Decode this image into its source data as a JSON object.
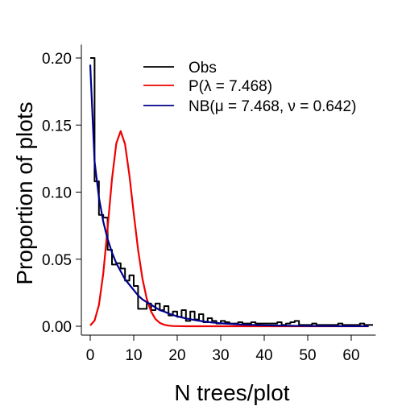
{
  "chart_data": {
    "type": "line",
    "xlabel": "N trees/plot",
    "ylabel": "Proportion of plots",
    "xlim": [
      -2,
      66
    ],
    "ylim": [
      -0.008,
      0.21
    ],
    "xticks": [
      0,
      10,
      20,
      30,
      40,
      50,
      60
    ],
    "yticks": [
      0.0,
      0.05,
      0.1,
      0.15,
      0.2
    ],
    "xtick_labels": [
      "0",
      "10",
      "20",
      "30",
      "40",
      "50",
      "60"
    ],
    "ytick_labels": [
      "0.00",
      "0.05",
      "0.10",
      "0.15",
      "0.20"
    ],
    "grid": false,
    "legend_position": "top-right",
    "legend": [
      {
        "label": "Obs",
        "color": "#000000"
      },
      {
        "label": "P(λ = 7.468)",
        "color": "#ee0000"
      },
      {
        "label": "NB(μ = 7.468, ν = 0.642)",
        "color": "#00008b"
      }
    ],
    "series": [
      {
        "name": "Obs",
        "color": "#000000",
        "style": "step",
        "x": [
          0,
          1,
          2,
          3,
          4,
          5,
          6,
          7,
          8,
          9,
          10,
          11,
          12,
          13,
          14,
          15,
          16,
          17,
          18,
          19,
          20,
          21,
          22,
          23,
          24,
          25,
          26,
          27,
          28,
          29,
          30,
          31,
          32,
          33,
          34,
          35,
          36,
          37,
          38,
          39,
          40,
          41,
          42,
          43,
          44,
          45,
          46,
          47,
          48,
          49,
          50,
          51,
          52,
          53,
          54,
          55,
          56,
          57,
          58,
          59,
          60,
          61,
          62,
          63,
          64
        ],
        "y": [
          0.2,
          0.108,
          0.083,
          0.081,
          0.057,
          0.046,
          0.047,
          0.043,
          0.034,
          0.038,
          0.03,
          0.013,
          0.013,
          0.017,
          0.012,
          0.017,
          0.012,
          0.015,
          0.008,
          0.011,
          0.007,
          0.012,
          0.004,
          0.011,
          0.005,
          0.009,
          0.003,
          0.006,
          0.004,
          0.002,
          0.004,
          0.003,
          0.002,
          0.002,
          0.003,
          0.002,
          0.002,
          0.003,
          0.002,
          0.002,
          0.002,
          0.002,
          0.002,
          0.003,
          0.001,
          0.002,
          0.003,
          0.004,
          0.001,
          0.001,
          0.001,
          0.002,
          0.001,
          0.001,
          0.001,
          0.001,
          0.001,
          0.002,
          0.001,
          0.001,
          0.001,
          0.001,
          0.002,
          0.001,
          0.001
        ]
      },
      {
        "name": "P(λ = 7.468)",
        "color": "#ee0000",
        "style": "line",
        "x": [
          0,
          1,
          2,
          3,
          4,
          5,
          6,
          7,
          8,
          9,
          10,
          11,
          12,
          13,
          14,
          15,
          16,
          17,
          18,
          19,
          20,
          21,
          22,
          23,
          24,
          25,
          26,
          28,
          30,
          35,
          40,
          50,
          64
        ],
        "y": [
          0.0006,
          0.0042,
          0.0158,
          0.0393,
          0.0734,
          0.1096,
          0.1364,
          0.1455,
          0.1358,
          0.1127,
          0.0842,
          0.0571,
          0.0356,
          0.0204,
          0.0109,
          0.0054,
          0.0025,
          0.0011,
          0.0005,
          0.0002,
          0.0001,
          3e-05,
          1e-05,
          0,
          0,
          0,
          0,
          0,
          0,
          0,
          0,
          0,
          0
        ]
      },
      {
        "name": "NB(μ = 7.468, ν = 0.642)",
        "color": "#00008b",
        "style": "line",
        "x": [
          0,
          1,
          2,
          3,
          4,
          5,
          6,
          7,
          8,
          9,
          10,
          11,
          12,
          13,
          14,
          15,
          16,
          17,
          18,
          19,
          20,
          22,
          24,
          26,
          28,
          30,
          32,
          35,
          38,
          40,
          45,
          50,
          55,
          60,
          64
        ],
        "y": [
          0.195,
          0.123,
          0.096,
          0.078,
          0.065,
          0.055,
          0.047,
          0.041,
          0.035,
          0.031,
          0.027,
          0.023,
          0.02,
          0.018,
          0.016,
          0.014,
          0.012,
          0.011,
          0.0095,
          0.0084,
          0.0074,
          0.0058,
          0.0046,
          0.0036,
          0.0028,
          0.0022,
          0.0018,
          0.0012,
          0.0009,
          0.0007,
          0.0004,
          0.0002,
          0.0001,
          7e-05,
          5e-05
        ]
      }
    ]
  }
}
